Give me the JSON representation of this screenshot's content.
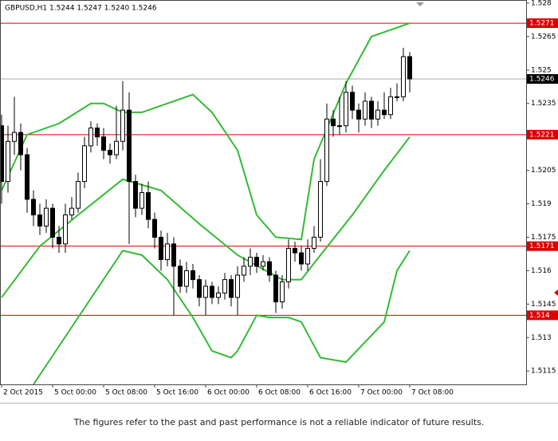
{
  "chart_data": {
    "type": "candlestick",
    "title": "GBPUSD,H1  1.5244 1.5247 1.5240 1.5246",
    "xlim": [
      -0.25,
      82.25
    ],
    "xticks": [
      {
        "value": 0,
        "label": "2 Oct 2015"
      },
      {
        "value": 8,
        "label": "5 Oct 00:00"
      },
      {
        "value": 16,
        "label": "5 Oct 08:00"
      },
      {
        "value": 24,
        "label": "5 Oct 16:00"
      },
      {
        "value": 32,
        "label": "6 Oct 00:00"
      },
      {
        "value": 40,
        "label": "6 Oct 08:00"
      },
      {
        "value": 48,
        "label": "6 Oct 16:00"
      },
      {
        "value": 56,
        "label": "7 Oct 00:00"
      },
      {
        "value": 64,
        "label": "7 Oct 08:00"
      }
    ],
    "ylim": [
      1.5109,
      1.52814
    ],
    "yticks": [
      1.528,
      1.5265,
      1.525,
      1.5235,
      1.5205,
      1.519,
      1.5175,
      1.516,
      1.5145,
      1.513,
      1.5115
    ],
    "open": [
      1.5225,
      1.52,
      1.5218,
      1.5222,
      1.5212,
      1.5192,
      1.5185,
      1.518,
      1.5188,
      1.5175,
      1.5172,
      1.5185,
      1.5188,
      1.52,
      1.5216,
      1.5224,
      1.522,
      1.5214,
      1.5212,
      1.5218,
      1.5232,
      1.52,
      1.5188,
      1.5195,
      1.5183,
      1.5175,
      1.5165,
      1.5172,
      1.5162,
      1.5153,
      1.516,
      1.5156,
      1.5148,
      1.5153,
      1.5148,
      1.515,
      1.5156,
      1.5148,
      1.5158,
      1.5162,
      1.5166,
      1.5162,
      1.5164,
      1.5158,
      1.5146,
      1.5155,
      1.517,
      1.5168,
      1.5163,
      1.517,
      1.5175,
      1.52,
      1.5228,
      1.5225,
      1.5225,
      1.524,
      1.5232,
      1.5228,
      1.5236,
      1.5228,
      1.5232,
      1.523,
      1.5238,
      1.5238,
      1.5256
    ],
    "high": [
      1.523,
      1.5225,
      1.5238,
      1.5226,
      1.5215,
      1.5196,
      1.519,
      1.5192,
      1.519,
      1.518,
      1.519,
      1.5193,
      1.5204,
      1.522,
      1.5227,
      1.5226,
      1.5224,
      1.5217,
      1.5234,
      1.5245,
      1.524,
      1.5203,
      1.5199,
      1.52,
      1.5186,
      1.5178,
      1.5177,
      1.5175,
      1.5165,
      1.5164,
      1.5163,
      1.5158,
      1.5156,
      1.5155,
      1.5153,
      1.5159,
      1.5158,
      1.5162,
      1.5166,
      1.517,
      1.5168,
      1.5167,
      1.5166,
      1.516,
      1.5158,
      1.5174,
      1.5173,
      1.5171,
      1.5174,
      1.518,
      1.521,
      1.5235,
      1.5232,
      1.5238,
      1.5245,
      1.5243,
      1.5235,
      1.524,
      1.5238,
      1.5236,
      1.524,
      1.5242,
      1.5244,
      1.526,
      1.5258
    ],
    "low": [
      1.519,
      1.5195,
      1.5212,
      1.5205,
      1.5186,
      1.518,
      1.5176,
      1.5177,
      1.517,
      1.5168,
      1.5168,
      1.5183,
      1.5186,
      1.5197,
      1.5213,
      1.5216,
      1.521,
      1.5208,
      1.521,
      1.5214,
      1.5172,
      1.5184,
      1.5185,
      1.5179,
      1.517,
      1.516,
      1.5162,
      1.514,
      1.515,
      1.515,
      1.5152,
      1.5144,
      1.514,
      1.5145,
      1.5145,
      1.5147,
      1.5144,
      1.514,
      1.5155,
      1.5158,
      1.5159,
      1.516,
      1.5155,
      1.5141,
      1.5143,
      1.5152,
      1.5164,
      1.516,
      1.516,
      1.5168,
      1.5173,
      1.5198,
      1.522,
      1.5221,
      1.5222,
      1.5228,
      1.5222,
      1.5225,
      1.5224,
      1.5225,
      1.5228,
      1.5228,
      1.5236,
      1.5236,
      1.524
    ],
    "close": [
      1.52,
      1.5218,
      1.5222,
      1.5212,
      1.5192,
      1.5185,
      1.518,
      1.5188,
      1.5175,
      1.5172,
      1.5185,
      1.5188,
      1.52,
      1.5216,
      1.5224,
      1.522,
      1.5214,
      1.5212,
      1.5218,
      1.5232,
      1.52,
      1.5188,
      1.5195,
      1.5183,
      1.5175,
      1.5165,
      1.5172,
      1.5162,
      1.5153,
      1.516,
      1.5156,
      1.5148,
      1.5153,
      1.5148,
      1.515,
      1.5156,
      1.5148,
      1.5158,
      1.5162,
      1.5166,
      1.5162,
      1.5164,
      1.5158,
      1.5146,
      1.5155,
      1.517,
      1.5168,
      1.5163,
      1.517,
      1.5175,
      1.52,
      1.5228,
      1.5225,
      1.5225,
      1.524,
      1.5232,
      1.5228,
      1.5236,
      1.5228,
      1.5232,
      1.523,
      1.5238,
      1.5238,
      1.5256,
      1.5246
    ],
    "bull_color": "#ffffff",
    "bear_color": "#000000",
    "bands": [
      {
        "color": "#33bb33",
        "x": [
          0,
          4,
          9,
          14,
          16,
          19,
          22,
          26,
          30,
          33,
          37,
          40,
          43,
          47,
          49,
          54,
          58,
          64
        ],
        "values": [
          1.5196,
          1.5221,
          1.5226,
          1.5235,
          1.5235,
          1.5231,
          1.5231,
          1.5235,
          1.5239,
          1.5231,
          1.5214,
          1.5185,
          1.5175,
          1.5174,
          1.521,
          1.5244,
          1.5265,
          1.5271
        ]
      },
      {
        "color": "#33bb33",
        "x": [
          0,
          6,
          12,
          19,
          25,
          31,
          37,
          44,
          47,
          50,
          55,
          60,
          64
        ],
        "values": [
          1.5148,
          1.5171,
          1.5185,
          1.5201,
          1.5196,
          1.5181,
          1.5167,
          1.5156,
          1.5156,
          1.5167,
          1.5185,
          1.5205,
          1.522
        ]
      },
      {
        "color": "#33bb33",
        "x": [
          5,
          12,
          19,
          22,
          26,
          30,
          33,
          36,
          37,
          40,
          42,
          45,
          47,
          50,
          54,
          57,
          60,
          62,
          64
        ],
        "values": [
          1.5109,
          1.5139,
          1.5169,
          1.5167,
          1.5156,
          1.5139,
          1.5124,
          1.5121,
          1.5124,
          1.514,
          1.5139,
          1.5139,
          1.5137,
          1.5121,
          1.5119,
          1.5128,
          1.5137,
          1.516,
          1.5169
        ]
      }
    ],
    "levels": [
      1.5271,
      1.5221,
      1.5171,
      1.514
    ],
    "level_color": "#dd0000",
    "current_price": 1.5246
  },
  "disclaimer": "The figures refer to the past and past performance is not a reliable indicator of future results."
}
